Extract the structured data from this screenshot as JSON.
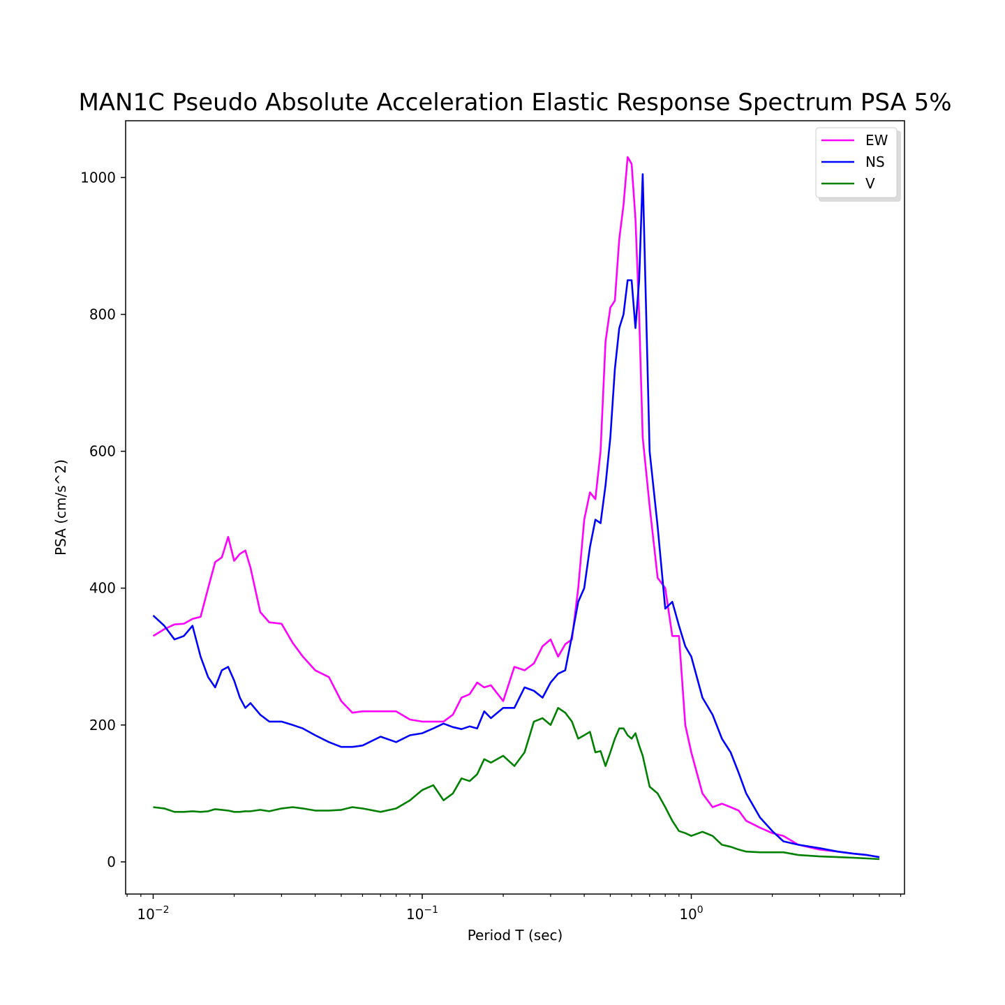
{
  "chart_data": {
    "type": "line",
    "title": "MAN1C Pseudo Absolute Acceleration Elastic Response Spectrum PSA 5%",
    "xlabel": "Period T (sec)",
    "ylabel": "PSA (cm/s^2)",
    "xscale": "log",
    "xlim": [
      0.0079,
      6.2
    ],
    "ylim": [
      -47,
      1083
    ],
    "xticks": [
      {
        "value": 0.01,
        "base": "10",
        "exp": "−2"
      },
      {
        "value": 0.1,
        "base": "10",
        "exp": "−1"
      },
      {
        "value": 1,
        "base": "10",
        "exp": "0"
      }
    ],
    "yticks": [
      0,
      200,
      400,
      600,
      800,
      1000
    ],
    "grid": false,
    "legend_position": "top-right",
    "x": [
      0.01,
      0.011,
      0.012,
      0.013,
      0.014,
      0.015,
      0.016,
      0.017,
      0.018,
      0.019,
      0.02,
      0.021,
      0.022,
      0.023,
      0.025,
      0.027,
      0.03,
      0.033,
      0.036,
      0.04,
      0.045,
      0.05,
      0.055,
      0.06,
      0.07,
      0.08,
      0.09,
      0.1,
      0.11,
      0.12,
      0.13,
      0.14,
      0.15,
      0.16,
      0.17,
      0.18,
      0.2,
      0.22,
      0.24,
      0.26,
      0.28,
      0.3,
      0.32,
      0.34,
      0.36,
      0.38,
      0.4,
      0.42,
      0.44,
      0.46,
      0.48,
      0.5,
      0.52,
      0.54,
      0.56,
      0.58,
      0.6,
      0.62,
      0.64,
      0.66,
      0.7,
      0.75,
      0.8,
      0.85,
      0.9,
      0.95,
      1.0,
      1.1,
      1.2,
      1.3,
      1.4,
      1.5,
      1.6,
      1.8,
      2.0,
      2.2,
      2.5,
      3.0,
      3.5,
      4.0,
      4.5,
      5.0
    ],
    "series": [
      {
        "name": "EW",
        "color": "#ff00ff",
        "values": [
          330,
          340,
          347,
          348,
          355,
          358,
          400,
          438,
          445,
          475,
          440,
          450,
          455,
          430,
          365,
          350,
          348,
          320,
          300,
          280,
          270,
          235,
          218,
          220,
          220,
          220,
          208,
          205,
          205,
          205,
          215,
          240,
          245,
          262,
          255,
          258,
          235,
          285,
          280,
          290,
          315,
          325,
          300,
          318,
          325,
          400,
          500,
          540,
          530,
          600,
          760,
          810,
          820,
          910,
          960,
          1030,
          1020,
          940,
          800,
          620,
          520,
          415,
          400,
          330,
          330,
          200,
          160,
          100,
          80,
          85,
          80,
          75,
          60,
          50,
          42,
          38,
          25,
          18,
          15,
          12,
          10,
          7
        ]
      },
      {
        "name": "NS",
        "color": "#0000ff",
        "values": [
          360,
          345,
          325,
          330,
          345,
          300,
          270,
          255,
          280,
          285,
          265,
          240,
          225,
          232,
          215,
          205,
          205,
          200,
          195,
          185,
          175,
          168,
          168,
          170,
          183,
          175,
          185,
          188,
          195,
          202,
          197,
          194,
          198,
          195,
          220,
          210,
          225,
          225,
          255,
          250,
          240,
          262,
          275,
          280,
          330,
          380,
          400,
          460,
          500,
          495,
          550,
          620,
          720,
          780,
          800,
          850,
          850,
          780,
          850,
          1005,
          600,
          490,
          370,
          380,
          345,
          315,
          300,
          240,
          215,
          180,
          160,
          130,
          100,
          65,
          45,
          30,
          25,
          20,
          15,
          12,
          10,
          7
        ]
      },
      {
        "name": "V",
        "color": "#008000",
        "values": [
          80,
          78,
          73,
          73,
          74,
          73,
          74,
          77,
          76,
          75,
          73,
          73,
          74,
          74,
          76,
          74,
          78,
          80,
          78,
          75,
          75,
          76,
          80,
          78,
          73,
          78,
          90,
          105,
          112,
          90,
          100,
          122,
          118,
          128,
          150,
          145,
          155,
          140,
          160,
          205,
          210,
          200,
          225,
          218,
          205,
          180,
          185,
          190,
          160,
          162,
          140,
          160,
          180,
          195,
          195,
          185,
          180,
          188,
          170,
          155,
          110,
          100,
          80,
          60,
          45,
          42,
          38,
          44,
          38,
          25,
          22,
          18,
          15,
          14,
          14,
          14,
          10,
          8,
          7,
          6,
          5,
          4
        ]
      }
    ]
  }
}
